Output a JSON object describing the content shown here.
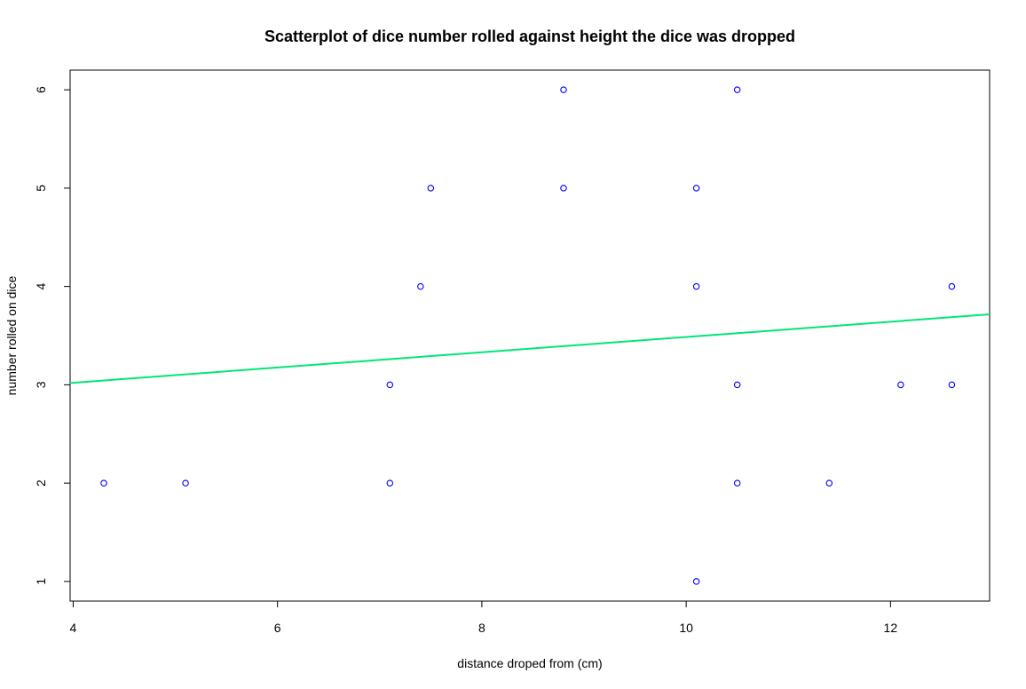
{
  "chart_data": {
    "type": "scatter",
    "title": "Scatterplot of dice number rolled against height the dice was dropped",
    "xlabel": "distance droped from (cm)",
    "ylabel": "number rolled on dice",
    "xlim": [
      3.97,
      12.97
    ],
    "ylim": [
      0.8,
      6.2
    ],
    "xticks": [
      4,
      6,
      8,
      10,
      12
    ],
    "yticks": [
      1,
      2,
      3,
      4,
      5,
      6
    ],
    "grid": false,
    "legend": "none",
    "points": [
      {
        "x": 4.3,
        "y": 2
      },
      {
        "x": 5.1,
        "y": 2
      },
      {
        "x": 7.1,
        "y": 2
      },
      {
        "x": 7.1,
        "y": 3
      },
      {
        "x": 7.4,
        "y": 4
      },
      {
        "x": 7.5,
        "y": 5
      },
      {
        "x": 8.8,
        "y": 5
      },
      {
        "x": 8.8,
        "y": 6
      },
      {
        "x": 10.1,
        "y": 1
      },
      {
        "x": 10.1,
        "y": 4
      },
      {
        "x": 10.1,
        "y": 5
      },
      {
        "x": 10.5,
        "y": 6
      },
      {
        "x": 10.5,
        "y": 3
      },
      {
        "x": 10.5,
        "y": 2
      },
      {
        "x": 11.4,
        "y": 2
      },
      {
        "x": 12.1,
        "y": 3
      },
      {
        "x": 12.6,
        "y": 4
      },
      {
        "x": 12.6,
        "y": 3
      }
    ],
    "regression_line": {
      "intercept": 2.71,
      "slope": 0.0776
    },
    "colors": {
      "points": "#0000ff",
      "regression_line": "#00e676",
      "axis": "#000000"
    }
  }
}
